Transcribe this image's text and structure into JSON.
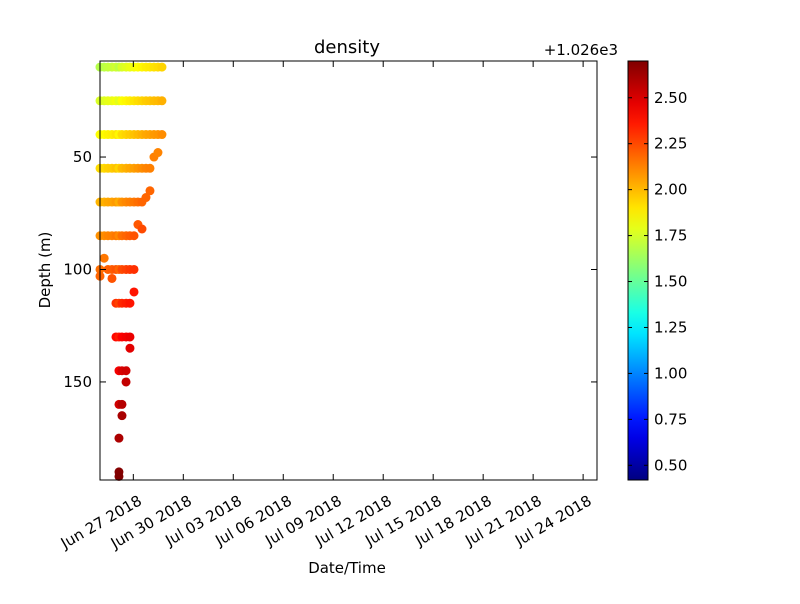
{
  "chart_data": {
    "type": "scatter",
    "title": "density",
    "xlabel": "Date/Time",
    "ylabel": "Depth (m)",
    "xlim": [
      "2018-06-25T00:00",
      "2018-07-24T20:00"
    ],
    "xticks": [
      {
        "value": "2018-06-27",
        "label": "Jun 27 2018"
      },
      {
        "value": "2018-06-30",
        "label": "Jun 30 2018"
      },
      {
        "value": "2018-07-03",
        "label": "Jul 03 2018"
      },
      {
        "value": "2018-07-06",
        "label": "Jul 06 2018"
      },
      {
        "value": "2018-07-09",
        "label": "Jul 09 2018"
      },
      {
        "value": "2018-07-12",
        "label": "Jul 12 2018"
      },
      {
        "value": "2018-07-15",
        "label": "Jul 15 2018"
      },
      {
        "value": "2018-07-18",
        "label": "Jul 18 2018"
      },
      {
        "value": "2018-07-21",
        "label": "Jul 21 2018"
      },
      {
        "value": "2018-07-24",
        "label": "Jul 24 2018"
      }
    ],
    "ylim": [
      193.6,
      7.3
    ],
    "yticks": [
      50,
      100,
      150
    ],
    "colorbar": {
      "colormap": "jet",
      "offset_label": "+1.026e3",
      "clim": [
        0.42,
        2.7
      ],
      "ticks": [
        {
          "value": 0.5,
          "label": "0.50"
        },
        {
          "value": 0.75,
          "label": "0.75"
        },
        {
          "value": 1.0,
          "label": "1.00"
        },
        {
          "value": 1.25,
          "label": "1.25"
        },
        {
          "value": 1.5,
          "label": "1.50"
        },
        {
          "value": 1.75,
          "label": "1.75"
        },
        {
          "value": 2.0,
          "label": "2.00"
        },
        {
          "value": 2.25,
          "label": "2.25"
        },
        {
          "value": 2.5,
          "label": "2.50"
        }
      ]
    },
    "profiles": [
      {
        "x": "2018-06-25T00:00",
        "depth": [
          10,
          25,
          40,
          55,
          70,
          85,
          100,
          103
        ],
        "density": [
          1.68,
          1.76,
          1.84,
          1.92,
          2.01,
          2.09,
          2.17,
          2.19
        ]
      },
      {
        "x": "2018-06-25T06:00",
        "depth": [
          10,
          25,
          40,
          55,
          70,
          85,
          95
        ],
        "density": [
          1.69,
          1.77,
          1.85,
          1.93,
          2.02,
          2.1,
          2.15
        ]
      },
      {
        "x": "2018-06-25T11:30",
        "depth": [
          10,
          25,
          40,
          55,
          70,
          85,
          100
        ],
        "density": [
          1.71,
          1.79,
          1.87,
          1.95,
          2.04,
          2.12,
          2.2
        ]
      },
      {
        "x": "2018-06-25T17:15",
        "depth": [
          10,
          25,
          40,
          55,
          70,
          85,
          100,
          104
        ],
        "density": [
          1.72,
          1.8,
          1.88,
          1.96,
          2.05,
          2.13,
          2.21,
          2.23
        ]
      },
      {
        "x": "2018-06-25T23:00",
        "depth": [
          10,
          25,
          40,
          55,
          70,
          85,
          100,
          115,
          130
        ],
        "density": [
          1.74,
          1.82,
          1.9,
          1.98,
          2.07,
          2.15,
          2.23,
          2.31,
          2.4
        ]
      },
      {
        "x": "2018-06-26T03:20",
        "depth": [
          10,
          25,
          40,
          55,
          70,
          85,
          100,
          115,
          130,
          145,
          160,
          175,
          190,
          192
        ],
        "density": [
          1.7,
          1.78,
          1.86,
          1.94,
          2.03,
          2.11,
          2.19,
          2.27,
          2.36,
          2.44,
          2.52,
          2.6,
          2.69,
          2.7
        ]
      },
      {
        "x": "2018-06-26T07:40",
        "depth": [
          10,
          25,
          40,
          55,
          70,
          85,
          100,
          115,
          130,
          145,
          160,
          165
        ],
        "density": [
          1.76,
          1.84,
          1.92,
          2.0,
          2.09,
          2.17,
          2.25,
          2.33,
          2.42,
          2.5,
          2.58,
          2.61
        ]
      },
      {
        "x": "2018-06-26T13:30",
        "depth": [
          10,
          25,
          40,
          55,
          70,
          85,
          100,
          115,
          130,
          145,
          150
        ],
        "density": [
          1.78,
          1.86,
          1.94,
          2.02,
          2.11,
          2.19,
          2.27,
          2.35,
          2.44,
          2.52,
          2.55
        ]
      },
      {
        "x": "2018-06-26T19:10",
        "depth": [
          10,
          25,
          40,
          55,
          70,
          85,
          100,
          115,
          130,
          135
        ],
        "density": [
          1.8,
          1.88,
          1.96,
          2.04,
          2.13,
          2.21,
          2.29,
          2.37,
          2.46,
          2.48
        ]
      },
      {
        "x": "2018-06-27T01:00",
        "depth": [
          10,
          25,
          40,
          55,
          70,
          85,
          100,
          110
        ],
        "density": [
          1.82,
          1.9,
          1.98,
          2.06,
          2.15,
          2.23,
          2.31,
          2.37
        ]
      },
      {
        "x": "2018-06-27T06:40",
        "depth": [
          10,
          25,
          40,
          55,
          70,
          80
        ],
        "density": [
          1.84,
          1.92,
          2.0,
          2.08,
          2.17,
          2.22
        ]
      },
      {
        "x": "2018-06-27T12:30",
        "depth": [
          10,
          25,
          40,
          55,
          70,
          82
        ],
        "density": [
          1.86,
          1.94,
          2.02,
          2.1,
          2.19,
          2.25
        ]
      },
      {
        "x": "2018-06-27T18:15",
        "depth": [
          10,
          25,
          40,
          55,
          68
        ],
        "density": [
          1.88,
          1.96,
          2.04,
          2.12,
          2.19
        ]
      },
      {
        "x": "2018-06-28T00:00",
        "depth": [
          10,
          25,
          40,
          55,
          65
        ],
        "density": [
          1.89,
          1.97,
          2.05,
          2.13,
          2.19
        ]
      },
      {
        "x": "2018-06-28T05:45",
        "depth": [
          10,
          25,
          40,
          50
        ],
        "density": [
          1.91,
          1.99,
          2.07,
          2.13
        ]
      },
      {
        "x": "2018-06-28T11:30",
        "depth": [
          10,
          25,
          40,
          48
        ],
        "density": [
          1.92,
          2.0,
          2.08,
          2.12
        ]
      },
      {
        "x": "2018-06-28T17:15",
        "depth": [
          10,
          25,
          40
        ],
        "density": [
          1.94,
          2.02,
          2.1
        ]
      }
    ]
  }
}
